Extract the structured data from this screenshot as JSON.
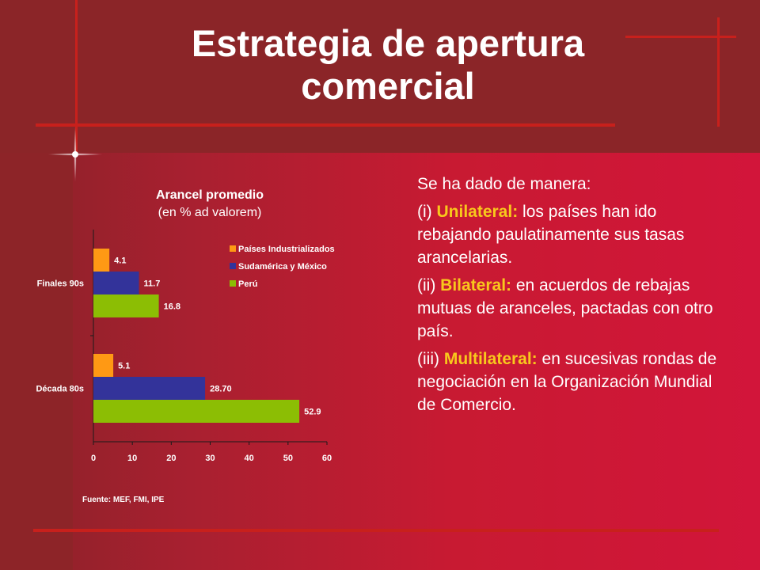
{
  "title": {
    "line1": "Estrategia de apertura",
    "line2": "comercial"
  },
  "chart_data": {
    "type": "bar",
    "orientation": "horizontal",
    "title": "Arancel promedio",
    "subtitle": "(en % ad valorem)",
    "categories": [
      "Finales 90s",
      "Década 80s"
    ],
    "series": [
      {
        "name": "Países Industrializados",
        "values": [
          4.1,
          5.1
        ],
        "labels": [
          "4.1",
          "5.1"
        ],
        "color": "#ff9914"
      },
      {
        "name": "Sudamérica y México",
        "values": [
          11.7,
          28.7
        ],
        "labels": [
          "11.7",
          "28.70"
        ],
        "color": "#33339a"
      },
      {
        "name": "Perú",
        "values": [
          16.8,
          52.9
        ],
        "labels": [
          "16.8",
          "52.9"
        ],
        "color": "#8cbe04"
      }
    ],
    "xlim": [
      0,
      60
    ],
    "xticks": [
      "0",
      "10",
      "20",
      "30",
      "40",
      "50",
      "60"
    ],
    "grid": false,
    "legend_position": "top-right"
  },
  "source": "Fuente: MEF, FMI, IPE",
  "text": {
    "intro": "Se ha dado de manera:",
    "items": [
      {
        "prefix": "(i) ",
        "keyword": "Unilateral:",
        "rest": " los países han ido rebajando paulatinamente sus tasas arancelarias."
      },
      {
        "prefix": "(ii) ",
        "keyword": "Bilateral:",
        "rest": " en acuerdos de rebajas mutuas de aranceles, pactadas con otro país."
      },
      {
        "prefix": "(iii) ",
        "keyword": "Multilateral:",
        "rest": " en sucesivas rondas de negociación en la Organización Mundial de Comercio."
      }
    ]
  },
  "colors": {
    "highlight": "#f8c81c",
    "accent_line": "#c8201c"
  }
}
